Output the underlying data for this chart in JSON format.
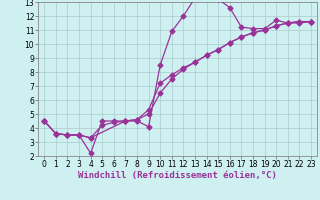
{
  "title": "",
  "xlabel": "Windchill (Refroidissement éolien,°C)",
  "ylabel": "",
  "xlim": [
    -0.5,
    23.5
  ],
  "ylim": [
    2,
    13
  ],
  "xticks": [
    0,
    1,
    2,
    3,
    4,
    5,
    6,
    7,
    8,
    9,
    10,
    11,
    12,
    13,
    14,
    15,
    16,
    17,
    18,
    19,
    20,
    21,
    22,
    23
  ],
  "yticks": [
    2,
    3,
    4,
    5,
    6,
    7,
    8,
    9,
    10,
    11,
    12,
    13
  ],
  "background_color": "#cff0f0",
  "grid_color": "#aacccc",
  "line_color": "#993399",
  "line1_x": [
    0,
    1,
    2,
    3,
    4,
    5,
    6,
    7,
    8,
    9,
    10,
    11,
    12,
    13,
    14,
    15,
    16,
    17,
    18,
    19,
    20,
    21,
    22,
    23
  ],
  "line1_y": [
    4.5,
    3.6,
    3.5,
    3.5,
    2.2,
    4.5,
    4.5,
    4.5,
    4.5,
    4.1,
    8.5,
    10.9,
    12.0,
    13.3,
    13.3,
    13.2,
    12.6,
    11.2,
    11.1,
    11.1,
    11.7,
    11.5,
    11.5,
    11.6
  ],
  "line2_x": [
    0,
    1,
    2,
    3,
    4,
    7,
    8,
    9,
    10,
    11,
    12,
    13,
    14,
    15,
    16,
    17,
    18,
    19,
    20,
    21,
    22,
    23
  ],
  "line2_y": [
    4.5,
    3.6,
    3.5,
    3.5,
    3.3,
    4.5,
    4.6,
    5.3,
    7.2,
    7.8,
    8.3,
    8.7,
    9.2,
    9.6,
    10.1,
    10.5,
    10.8,
    11.0,
    11.3,
    11.5,
    11.6,
    11.6
  ],
  "line3_x": [
    0,
    1,
    2,
    3,
    4,
    5,
    6,
    7,
    8,
    9,
    10,
    11,
    12,
    13,
    14,
    15,
    16,
    17,
    18,
    19,
    20,
    21,
    22,
    23
  ],
  "line3_y": [
    4.5,
    3.6,
    3.5,
    3.5,
    3.3,
    4.2,
    4.4,
    4.5,
    4.6,
    5.0,
    6.5,
    7.5,
    8.2,
    8.7,
    9.2,
    9.6,
    10.1,
    10.5,
    10.8,
    11.0,
    11.3,
    11.5,
    11.6,
    11.6
  ],
  "marker": "D",
  "markersize": 2.5,
  "linewidth": 0.9,
  "tick_fontsize": 5.5,
  "xlabel_fontsize": 6.5
}
